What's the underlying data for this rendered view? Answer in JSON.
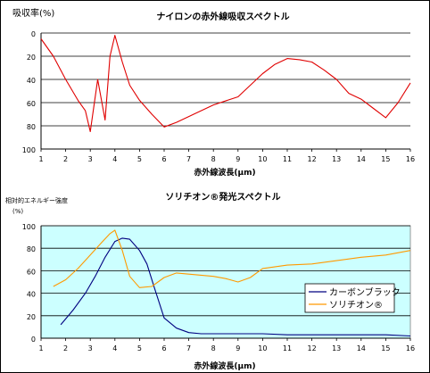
{
  "chart_data": [
    {
      "type": "line",
      "title": "ナイロンの赤外線吸収スペクトル",
      "ylabel": "吸収率(%)",
      "xlabel": "赤外線波長(μm)",
      "xlim": [
        1,
        16
      ],
      "ylim": [
        0,
        100
      ],
      "y_inverted": true,
      "x_ticks": [
        1,
        2,
        3,
        4,
        5,
        6,
        7,
        8,
        9,
        10,
        11,
        12,
        13,
        14,
        15,
        16
      ],
      "y_ticks": [
        0,
        20,
        40,
        60,
        80,
        100
      ],
      "grid": "horizontal",
      "series": [
        {
          "color": "#e00000",
          "x": [
            1.0,
            1.5,
            2.0,
            2.5,
            2.8,
            3.0,
            3.3,
            3.6,
            3.8,
            4.0,
            4.3,
            4.6,
            5.0,
            5.5,
            6.0,
            6.5,
            7.0,
            8.0,
            9.0,
            10.0,
            10.5,
            11.0,
            11.5,
            12.0,
            12.5,
            13.0,
            13.5,
            14.0,
            14.5,
            15.0,
            15.5,
            16.0
          ],
          "y": [
            5,
            20,
            40,
            58,
            67,
            85,
            40,
            75,
            20,
            2,
            25,
            45,
            58,
            70,
            81,
            77,
            72,
            62,
            55,
            35,
            27,
            22,
            23,
            25,
            32,
            40,
            52,
            57,
            65,
            73,
            60,
            43
          ]
        }
      ]
    },
    {
      "type": "line",
      "title": "ソリチオン®発光スペクトル",
      "ylabel": "相対的エネルギー強度",
      "yunit": "(%)",
      "xlabel": "赤外線波長(μm)",
      "xlim": [
        1,
        16
      ],
      "ylim": [
        0,
        100
      ],
      "x_ticks": [
        1,
        2,
        3,
        4,
        5,
        6,
        7,
        8,
        9,
        10,
        11,
        12,
        13,
        14,
        15,
        16
      ],
      "y_ticks": [
        0,
        20,
        40,
        60,
        80,
        100
      ],
      "grid": "horizontal",
      "plot_background": "#ccffff",
      "legend": "right",
      "series": [
        {
          "name": "カーボンブラック",
          "color": "#000080",
          "x": [
            1.8,
            2.3,
            2.8,
            3.2,
            3.6,
            4.0,
            4.3,
            4.6,
            5.0,
            5.3,
            5.6,
            6.0,
            6.5,
            7.0,
            7.5,
            8.0,
            9.0,
            10.0,
            11.0,
            12.0,
            13.0,
            14.0,
            15.0,
            16.0
          ],
          "y": [
            12,
            25,
            40,
            55,
            72,
            86,
            89,
            88,
            78,
            66,
            45,
            18,
            9,
            5,
            4,
            4,
            4,
            4,
            3,
            3,
            3,
            3,
            3,
            2
          ]
        },
        {
          "name": "ソリチオン®",
          "color": "#ff9900",
          "x": [
            1.5,
            2.0,
            2.5,
            3.0,
            3.5,
            3.8,
            4.0,
            4.3,
            4.6,
            5.0,
            5.5,
            6.0,
            6.5,
            7.0,
            7.5,
            8.0,
            8.5,
            9.0,
            9.5,
            10.0,
            11.0,
            12.0,
            13.0,
            14.0,
            15.0,
            16.0
          ],
          "y": [
            46,
            52,
            62,
            74,
            86,
            93,
            96,
            78,
            55,
            45,
            46,
            54,
            58,
            57,
            56,
            55,
            53,
            50,
            54,
            62,
            65,
            66,
            69,
            72,
            74,
            78
          ]
        }
      ]
    }
  ]
}
